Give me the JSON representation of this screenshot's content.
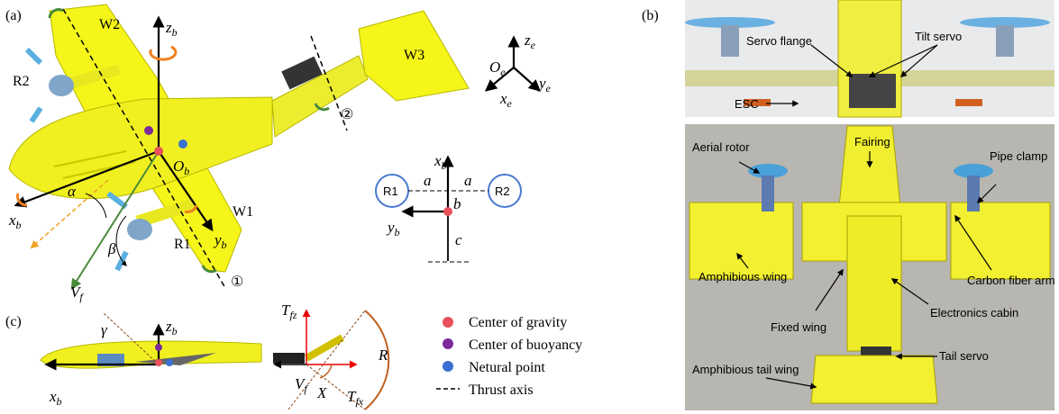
{
  "panel_a": {
    "label": "(a)",
    "wings": [
      "W2",
      "W3",
      "W1"
    ],
    "rotors": [
      "R2",
      "R1"
    ],
    "body_axes": [
      {
        "main": "z",
        "sub": "b"
      },
      {
        "main": "x",
        "sub": "b"
      },
      {
        "main": "y",
        "sub": "b"
      }
    ],
    "origin": {
      "main": "O",
      "sub": "b"
    },
    "earth_frame": {
      "origin": {
        "main": "O",
        "sub": "e"
      },
      "axes": [
        {
          "main": "z",
          "sub": "e"
        },
        {
          "main": "x",
          "sub": "e"
        },
        {
          "main": "y",
          "sub": "e"
        }
      ]
    },
    "angles": [
      "α",
      "β"
    ],
    "velocity": {
      "main": "V",
      "sub": "f"
    },
    "markers": [
      "①",
      "②"
    ],
    "layout_diagram": {
      "rotors": [
        "R1",
        "R2"
      ],
      "dims": [
        "a",
        "a",
        "b",
        "c"
      ],
      "axes": [
        {
          "main": "x",
          "sub": "b"
        },
        {
          "main": "y",
          "sub": "b"
        }
      ]
    }
  },
  "panel_b": {
    "label": "(b)",
    "top_labels": [
      "Servo flange",
      "Tilt servo",
      "ESC"
    ],
    "photo_labels": [
      "Aerial rotor",
      "Fairing",
      "Pipe clamp",
      "Carbon fiber arm",
      "Amphibious wing",
      "Fixed wing",
      "Electronics cabin",
      "Tail servo",
      "Amphibious tail wing"
    ]
  },
  "panel_c": {
    "label": "(c)",
    "angle": "γ",
    "axes": [
      {
        "main": "z",
        "sub": "b"
      },
      {
        "main": "x",
        "sub": "b"
      }
    ],
    "forces": [
      {
        "main": "T",
        "sub": "fz"
      },
      {
        "main": "T",
        "sub": "fx"
      }
    ],
    "velocity": {
      "main": "V",
      "sub": "f"
    },
    "symbols": [
      "X",
      "R"
    ]
  },
  "legend": [
    "Center of gravity",
    "Center of buoyancy",
    "Netural point",
    "Thrust axis"
  ]
}
